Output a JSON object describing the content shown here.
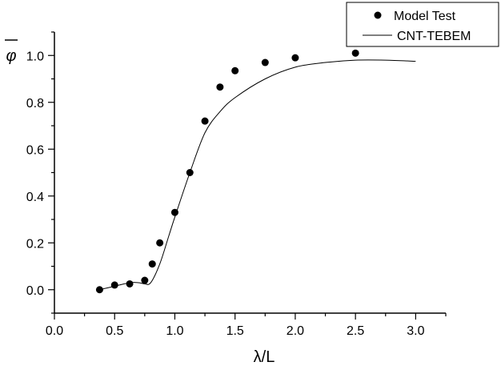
{
  "chart_data": {
    "type": "scatter",
    "title": "",
    "xlabel": "λ/L",
    "ylabel": "φ̄",
    "xlim": [
      0,
      3.25
    ],
    "ylim": [
      -0.1,
      1.1
    ],
    "grid": false,
    "legend_position": "top-right",
    "xticks": [
      "0.0",
      "0.5",
      "1.0",
      "1.5",
      "2.0",
      "2.5",
      "3.0"
    ],
    "yticks": [
      "0.0",
      "0.2",
      "0.4",
      "0.6",
      "0.8",
      "1.0"
    ],
    "series": [
      {
        "name": "Model Test",
        "kind": "scatter",
        "x": [
          0.375,
          0.5,
          0.625,
          0.75,
          0.8125,
          0.875,
          1.0,
          1.125,
          1.25,
          1.375,
          1.5,
          1.75,
          2.0,
          2.5
        ],
        "y": [
          0.0,
          0.02,
          0.025,
          0.04,
          0.11,
          0.2,
          0.33,
          0.5,
          0.72,
          0.865,
          0.935,
          0.97,
          0.99,
          1.01
        ]
      },
      {
        "name": "CNT-TEBEM",
        "kind": "line",
        "x": [
          0.375,
          0.5,
          0.625,
          0.7,
          0.75,
          0.8,
          0.875,
          0.95,
          1.0,
          1.125,
          1.25,
          1.375,
          1.5,
          1.75,
          2.0,
          2.25,
          2.5,
          2.75,
          3.0
        ],
        "y": [
          0.0,
          0.015,
          0.03,
          0.03,
          0.025,
          0.03,
          0.11,
          0.23,
          0.31,
          0.5,
          0.67,
          0.76,
          0.82,
          0.9,
          0.95,
          0.97,
          0.98,
          0.98,
          0.975
        ]
      }
    ]
  }
}
